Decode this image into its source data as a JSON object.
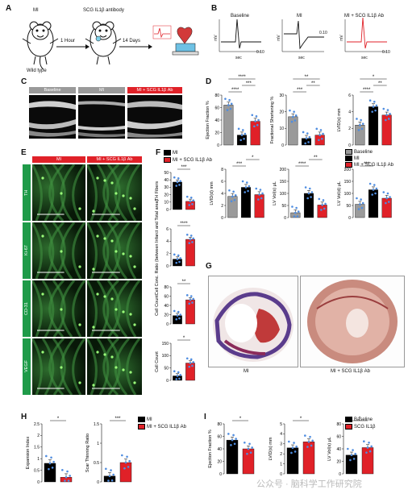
{
  "panels": {
    "A": "A",
    "B": "B",
    "C": "C",
    "D": "D",
    "E": "E",
    "F": "F",
    "G": "G",
    "H": "H",
    "I": "I"
  },
  "panelA": {
    "mouse1_top": "MI",
    "mouse1_bottom": "Wild type",
    "mouse2_top": "SCG IL1β antibody",
    "step1": "1 Hour",
    "step2": "14 Days"
  },
  "panelB": {
    "traces": [
      {
        "title": "Baseline",
        "ylabel": "mV",
        "xlabel": "sec",
        "tick": "0.10",
        "color": "#111111"
      },
      {
        "title": "MI",
        "ylabel": "mV",
        "xlabel": "sec",
        "tick": "0.10",
        "color": "#111111"
      },
      {
        "title": "MI + SCG IL1β Ab",
        "ylabel": "mV",
        "xlabel": "sec",
        "tick": "0.10",
        "color": "#e02128"
      }
    ]
  },
  "panelC": {
    "headers": [
      "Baseline",
      "MI",
      "MI + SCG IL1β Ab"
    ]
  },
  "panelE": {
    "headers": [
      "MI",
      "MI + SCG IL1β Ab"
    ],
    "rows": [
      "TH",
      "Ki-67",
      "CD-31",
      "VEGF"
    ]
  },
  "panelG": {
    "captions": [
      "MI",
      "MI + SCG IL1β Ab"
    ]
  },
  "legends": {
    "D": [
      "Baseline",
      "MI",
      "MI + SCG IL1β Ab"
    ],
    "F": [
      "MI",
      "MI + SCG IL1β Ab"
    ],
    "F2": [
      "Baseline",
      "MI",
      "MI + SCG IL1β Ab"
    ],
    "H": [
      "MI",
      "MI + SCG IL1β Ab"
    ],
    "I": [
      "Baseline",
      "SCG IL1β"
    ]
  },
  "colors": {
    "baseline": "#9a9a9a",
    "mi": "#000000",
    "ab": "#e02128",
    "dots": "#4f8de0"
  },
  "chart_data": [
    {
      "id": "D1",
      "type": "bar",
      "ylabel": "Ejection Fraction %",
      "ylim": [
        0,
        80
      ],
      "yticks": [
        0,
        20,
        40,
        60,
        80
      ],
      "groups": [
        "baseline",
        "mi",
        "ab"
      ],
      "values": [
        64,
        16,
        38
      ],
      "sig": [
        {
          "a": 0,
          "b": 1,
          "label": "****"
        },
        {
          "a": 1,
          "b": 2,
          "label": "***"
        },
        {
          "a": 0,
          "b": 2,
          "label": "****"
        }
      ]
    },
    {
      "id": "D2",
      "type": "bar",
      "ylabel": "Fractional Shortening %",
      "ylim": [
        0,
        30
      ],
      "yticks": [
        0,
        10,
        20,
        30
      ],
      "groups": [
        "baseline",
        "mi",
        "ab"
      ],
      "values": [
        17,
        4,
        6
      ],
      "sig": [
        {
          "a": 0,
          "b": 1,
          "label": "***"
        },
        {
          "a": 1,
          "b": 2,
          "label": "**"
        },
        {
          "a": 0,
          "b": 2,
          "label": "**"
        }
      ]
    },
    {
      "id": "D3",
      "type": "bar",
      "ylabel": "LVID(s) mm",
      "ylim": [
        0,
        6
      ],
      "yticks": [
        0,
        2,
        4,
        6
      ],
      "groups": [
        "baseline",
        "mi",
        "ab"
      ],
      "values": [
        2.4,
        4.6,
        3.6
      ],
      "sig": [
        {
          "a": 0,
          "b": 1,
          "label": "****"
        },
        {
          "a": 1,
          "b": 2,
          "label": "**"
        },
        {
          "a": 0,
          "b": 2,
          "label": "*"
        }
      ]
    },
    {
      "id": "F1",
      "type": "bar",
      "ylabel": "TH Fibers",
      "ylim": [
        0,
        50
      ],
      "yticks": [
        0,
        10,
        20,
        30,
        40,
        50
      ],
      "groups": [
        "mi",
        "ab"
      ],
      "values": [
        37,
        11
      ],
      "sig": [
        {
          "a": 0,
          "b": 1,
          "label": "***"
        }
      ]
    },
    {
      "id": "F2",
      "type": "bar",
      "ylabel": "Cell Conc. Ratio (between Infarct and Total area)",
      "ylim": [
        0,
        6
      ],
      "yticks": [
        0,
        2,
        4,
        6
      ],
      "groups": [
        "mi",
        "ab"
      ],
      "values": [
        1.1,
        4.3
      ],
      "sig": [
        {
          "a": 0,
          "b": 1,
          "label": "****"
        }
      ]
    },
    {
      "id": "F3",
      "type": "bar",
      "ylabel": "Cell Count",
      "ylim": [
        0,
        80
      ],
      "yticks": [
        0,
        20,
        40,
        60,
        80
      ],
      "groups": [
        "mi",
        "ab"
      ],
      "values": [
        18,
        52
      ],
      "sig": [
        {
          "a": 0,
          "b": 1,
          "label": "**"
        }
      ]
    },
    {
      "id": "F4",
      "type": "bar",
      "ylabel": "Cell Count",
      "ylim": [
        0,
        150
      ],
      "yticks": [
        0,
        50,
        100,
        150
      ],
      "groups": [
        "mi",
        "ab"
      ],
      "values": [
        18,
        70
      ],
      "sig": [
        {
          "a": 0,
          "b": 1,
          "label": "*"
        }
      ]
    },
    {
      "id": "F5",
      "type": "bar",
      "ylabel": "LVID(d) mm",
      "ylim": [
        0,
        8
      ],
      "yticks": [
        0,
        2,
        4,
        6,
        8
      ],
      "groups": [
        "baseline",
        "mi",
        "ab"
      ],
      "values": [
        3.5,
        5.0,
        3.8
      ],
      "sig": [
        {
          "a": 0,
          "b": 1,
          "label": "***"
        },
        {
          "a": 1,
          "b": 2,
          "label": "*"
        }
      ]
    },
    {
      "id": "F6",
      "type": "bar",
      "ylabel": "LV Vol(s) μL",
      "ylim": [
        0,
        200
      ],
      "yticks": [
        0,
        50,
        100,
        150,
        200
      ],
      "groups": [
        "baseline",
        "mi",
        "ab"
      ],
      "values": [
        20,
        100,
        52
      ],
      "sig": [
        {
          "a": 0,
          "b": 1,
          "label": "****"
        },
        {
          "a": 1,
          "b": 2,
          "label": "**"
        }
      ]
    },
    {
      "id": "F7",
      "type": "bar",
      "ylabel": "LV Vol(d) μL",
      "ylim": [
        0,
        200
      ],
      "yticks": [
        0,
        50,
        100,
        150,
        200
      ],
      "groups": [
        "baseline",
        "mi",
        "ab"
      ],
      "values": [
        55,
        115,
        80
      ],
      "sig": [
        {
          "a": 0,
          "b": 1,
          "label": "***"
        }
      ]
    },
    {
      "id": "H1",
      "type": "bar",
      "ylabel": "Expansion Index",
      "ylim": [
        0,
        2.5
      ],
      "yticks": [
        0.0,
        0.5,
        1.0,
        1.5,
        2.0,
        2.5
      ],
      "groups": [
        "mi",
        "ab"
      ],
      "values": [
        0.8,
        0.2
      ],
      "sig": [
        {
          "a": 0,
          "b": 1,
          "label": "*"
        }
      ]
    },
    {
      "id": "H2",
      "type": "bar",
      "ylabel": "Scar Thinning Ratio",
      "ylim": [
        0,
        1.5
      ],
      "yticks": [
        0.0,
        0.5,
        1.0,
        1.5
      ],
      "groups": [
        "mi",
        "ab"
      ],
      "values": [
        0.15,
        0.5
      ],
      "sig": [
        {
          "a": 0,
          "b": 1,
          "label": "***"
        }
      ]
    },
    {
      "id": "I1",
      "type": "bar",
      "ylabel": "Ejection Fraction %",
      "ylim": [
        0,
        80
      ],
      "yticks": [
        0,
        20,
        40,
        60,
        80
      ],
      "groups": [
        "mi",
        "ab"
      ],
      "values": [
        54,
        40
      ],
      "sig": [
        {
          "a": 0,
          "b": 1,
          "label": "*"
        }
      ]
    },
    {
      "id": "I2",
      "type": "bar",
      "ylabel": "LVID(s) mm",
      "ylim": [
        0,
        5
      ],
      "yticks": [
        0,
        1,
        2,
        3,
        4,
        5
      ],
      "groups": [
        "mi",
        "ab"
      ],
      "values": [
        2.6,
        3.2
      ],
      "sig": [
        {
          "a": 0,
          "b": 1,
          "label": "*"
        }
      ]
    },
    {
      "id": "I3",
      "type": "bar",
      "ylabel": "LV Vol(s) μL",
      "ylim": [
        0,
        80
      ],
      "yticks": [
        0,
        20,
        40,
        60,
        80
      ],
      "groups": [
        "mi",
        "ab"
      ],
      "values": [
        30,
        42
      ],
      "sig": [
        {
          "a": 0,
          "b": 1,
          "label": "*"
        }
      ]
    }
  ],
  "watermark": "公众号 · 脑科学工作研究院"
}
